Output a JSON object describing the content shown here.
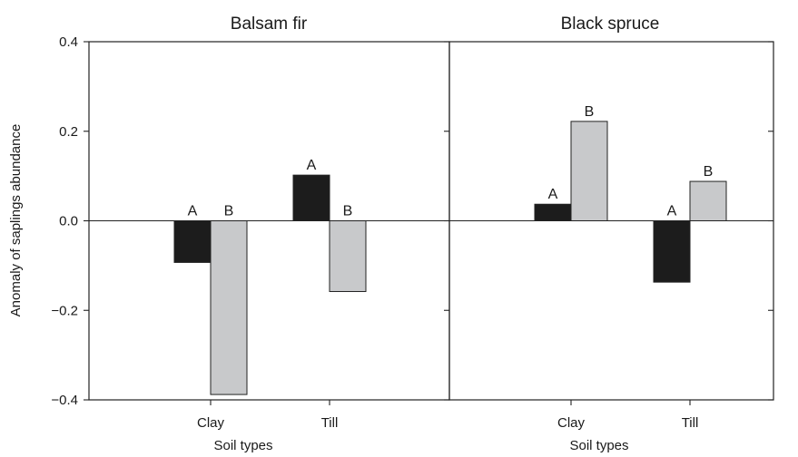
{
  "chart_data": {
    "type": "bar",
    "ylabel": "Anomaly of saplings abundance",
    "ylim": [
      -0.4,
      0.4
    ],
    "yticks": [
      0.4,
      0.2,
      0.0,
      -0.2,
      -0.4
    ],
    "ytick_labels": [
      "0.4",
      "0.2",
      "0.0",
      "−0.2",
      "−0.4"
    ],
    "grid": false,
    "legend": null,
    "series_colors": [
      "#1c1c1c",
      "#c8c9cb"
    ],
    "panels": [
      {
        "title": "Balsam fir",
        "xlabel": "Soil types",
        "categories": [
          "Clay",
          "Till"
        ],
        "series": [
          {
            "values": [
              -0.093,
              0.102
            ],
            "labels": [
              "A",
              "A"
            ]
          },
          {
            "values": [
              -0.388,
              -0.158
            ],
            "labels": [
              "B",
              "B"
            ]
          }
        ]
      },
      {
        "title": "Black spruce",
        "xlabel": "Soil types",
        "categories": [
          "Clay",
          "Till"
        ],
        "series": [
          {
            "values": [
              0.037,
              -0.137
            ],
            "labels": [
              "A",
              "A"
            ]
          },
          {
            "values": [
              0.222,
              0.088
            ],
            "labels": [
              "B",
              "B"
            ]
          }
        ]
      }
    ]
  }
}
